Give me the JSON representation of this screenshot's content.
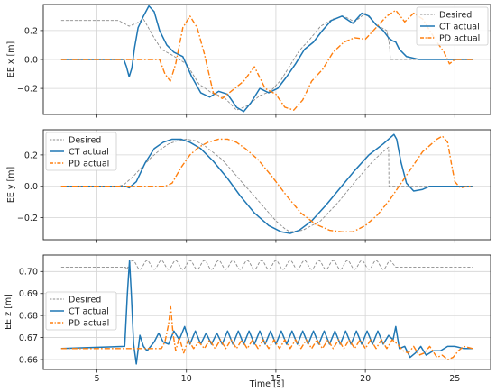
{
  "figure": {
    "xlabel": "Time [s]"
  },
  "colors": {
    "desired": "#8c8c8c",
    "ct": "#1f77b4",
    "pd": "#ff7f0e"
  },
  "chart_data": [
    {
      "type": "line",
      "ylabel": "EE x [m]",
      "xlim": [
        2,
        27
      ],
      "ylim": [
        -0.38,
        0.38
      ],
      "xticks": [
        5,
        10,
        15,
        20,
        25
      ],
      "yticks": [
        -0.2,
        0.0,
        0.2
      ],
      "ytick_labels": [
        "−0.2",
        "0.0",
        "0.2"
      ],
      "grid": true,
      "legend_position": "top-right",
      "series": [
        {
          "name": "Desired",
          "style": "dashed",
          "color": "#8c8c8c",
          "x": [
            3,
            6.2,
            6.5,
            6.8,
            7.2,
            7.6,
            8.1,
            8.6,
            9.2,
            10,
            10.7,
            11.4,
            12.1,
            12.8,
            13.4,
            14.1,
            14.7,
            15.3,
            15.8,
            16.3,
            16.9,
            17.5,
            18.2,
            18.8,
            19.4,
            20,
            20.6,
            21.2,
            21.35,
            21.4,
            21.6,
            22,
            26
          ],
          "y": [
            0.27,
            0.27,
            0.25,
            0.23,
            0.25,
            0.28,
            0.17,
            0.07,
            0.03,
            -0.03,
            -0.17,
            -0.23,
            -0.26,
            -0.35,
            -0.32,
            -0.25,
            -0.22,
            -0.14,
            -0.04,
            0.06,
            0.14,
            0.23,
            0.28,
            0.3,
            0.26,
            0.32,
            0.24,
            0.2,
            0.1,
            0,
            0,
            0,
            0
          ]
        },
        {
          "name": "CT actual",
          "style": "solid",
          "color": "#1f77b4",
          "x": [
            3,
            6.5,
            6.65,
            6.8,
            6.95,
            7.1,
            7.3,
            7.6,
            7.9,
            8.2,
            8.5,
            8.9,
            9.3,
            9.8,
            10.3,
            10.8,
            11.3,
            11.8,
            12.3,
            12.8,
            13.2,
            13.6,
            14.1,
            14.6,
            15.1,
            15.6,
            16.1,
            16.6,
            17.1,
            17.6,
            18.1,
            18.7,
            19.3,
            19.8,
            20.2,
            20.6,
            21,
            21.3,
            21.5,
            21.7,
            21.9,
            22.3,
            23,
            24,
            26
          ],
          "y": [
            0,
            0,
            -0.05,
            -0.12,
            -0.06,
            0.08,
            0.22,
            0.3,
            0.37,
            0.33,
            0.2,
            0.1,
            0.05,
            0.02,
            -0.12,
            -0.23,
            -0.26,
            -0.22,
            -0.24,
            -0.33,
            -0.36,
            -0.3,
            -0.2,
            -0.23,
            -0.2,
            -0.12,
            -0.03,
            0.07,
            0.12,
            0.2,
            0.27,
            0.3,
            0.25,
            0.32,
            0.3,
            0.24,
            0.2,
            0.15,
            0.13,
            0.12,
            0.07,
            0.02,
            0,
            0,
            0
          ]
        },
        {
          "name": "PD actual",
          "style": "dashdot",
          "color": "#ff7f0e",
          "x": [
            3,
            8.5,
            8.8,
            9.1,
            9.4,
            9.8,
            10.2,
            10.6,
            11,
            11.5,
            12,
            12.6,
            13.2,
            13.8,
            14.4,
            15,
            15.5,
            16,
            16.5,
            17,
            17.6,
            18.2,
            18.8,
            19.4,
            20,
            20.6,
            21.2,
            21.7,
            22.2,
            22.7,
            23.2,
            23.6,
            24,
            24.4,
            24.7,
            25,
            26
          ],
          "y": [
            0,
            0,
            -0.1,
            -0.15,
            -0.03,
            0.22,
            0.3,
            0.22,
            0.04,
            -0.23,
            -0.27,
            -0.21,
            -0.15,
            -0.05,
            -0.2,
            -0.24,
            -0.33,
            -0.35,
            -0.28,
            -0.15,
            -0.07,
            0.05,
            0.12,
            0.15,
            0.14,
            0.22,
            0.3,
            0.34,
            0.26,
            0.32,
            0.28,
            0.2,
            0.12,
            0.05,
            -0.03,
            0,
            0
          ]
        }
      ]
    },
    {
      "type": "line",
      "ylabel": "EE y [m]",
      "xlim": [
        2,
        27
      ],
      "ylim": [
        -0.34,
        0.36
      ],
      "xticks": [
        5,
        10,
        15,
        20,
        25
      ],
      "yticks": [
        -0.2,
        0.0,
        0.2
      ],
      "ytick_labels": [
        "−0.2",
        "0.0",
        "0.2"
      ],
      "grid": true,
      "legend_position": "top-left",
      "series": [
        {
          "name": "Desired",
          "style": "dashed",
          "color": "#8c8c8c",
          "x": [
            3,
            6.2,
            6.5,
            7,
            7.5,
            8,
            8.5,
            9,
            9.5,
            10,
            10.5,
            11,
            12,
            13,
            14,
            15,
            15.5,
            15.8,
            16.5,
            17.5,
            18.5,
            19.5,
            20.5,
            21.3,
            21.32,
            21.5,
            26
          ],
          "y": [
            0,
            0,
            0.01,
            0.06,
            0.12,
            0.18,
            0.23,
            0.27,
            0.29,
            0.3,
            0.29,
            0.26,
            0.17,
            0.04,
            -0.09,
            -0.22,
            -0.27,
            -0.29,
            -0.28,
            -0.22,
            -0.1,
            0.04,
            0.17,
            0.25,
            0,
            0,
            0
          ]
        },
        {
          "name": "CT actual",
          "style": "solid",
          "color": "#1f77b4",
          "x": [
            3,
            6.6,
            6.8,
            7.2,
            7.7,
            8.2,
            8.7,
            9.2,
            9.7,
            10.2,
            10.8,
            11.5,
            12.3,
            13,
            13.8,
            14.6,
            15.3,
            15.8,
            16.3,
            17,
            17.8,
            18.6,
            19.4,
            20.2,
            21,
            21.4,
            21.6,
            21.75,
            22,
            22.3,
            22.7,
            23.2,
            23.6,
            24,
            26
          ],
          "y": [
            0,
            0,
            -0.01,
            0.03,
            0.15,
            0.24,
            0.28,
            0.3,
            0.3,
            0.28,
            0.24,
            0.16,
            0.05,
            -0.06,
            -0.17,
            -0.25,
            -0.29,
            -0.3,
            -0.28,
            -0.22,
            -0.12,
            -0.01,
            0.1,
            0.2,
            0.27,
            0.31,
            0.33,
            0.3,
            0.15,
            0.02,
            -0.03,
            -0.02,
            0,
            0,
            0
          ]
        },
        {
          "name": "PD actual",
          "style": "dashdot",
          "color": "#ff7f0e",
          "x": [
            3,
            8.8,
            9.2,
            9.7,
            10.2,
            10.7,
            11.2,
            11.8,
            12.3,
            12.8,
            13.3,
            14,
            14.8,
            15.6,
            16.4,
            17.2,
            18,
            18.7,
            19.3,
            20,
            20.7,
            21.4,
            22,
            22.6,
            23.2,
            23.7,
            24,
            24.3,
            24.6,
            24.8,
            25,
            25.3,
            25.7,
            26
          ],
          "y": [
            0,
            0,
            0.02,
            0.12,
            0.2,
            0.25,
            0.28,
            0.3,
            0.3,
            0.28,
            0.24,
            0.17,
            0.06,
            -0.06,
            -0.17,
            -0.24,
            -0.28,
            -0.29,
            -0.29,
            -0.25,
            -0.18,
            -0.08,
            0.02,
            0.12,
            0.22,
            0.27,
            0.3,
            0.32,
            0.28,
            0.15,
            0.03,
            -0.01,
            0,
            0
          ]
        }
      ]
    },
    {
      "type": "line",
      "ylabel": "EE z [m]",
      "xlim": [
        2,
        27
      ],
      "ylim": [
        0.6555,
        0.7075
      ],
      "xticks": [
        5,
        10,
        15,
        20,
        25
      ],
      "yticks": [
        0.66,
        0.67,
        0.68,
        0.69,
        0.7
      ],
      "ytick_labels": [
        "0.66",
        "0.67",
        "0.68",
        "0.69",
        "0.70"
      ],
      "grid": true,
      "legend_position": "left",
      "series": [
        {
          "name": "Desired",
          "style": "dashed",
          "color": "#8c8c8c",
          "generator": "sine",
          "x_start": 3,
          "osc_start": 6.6,
          "osc_end": 21.4,
          "x_end": 26,
          "baseline": 0.702,
          "center": 0.703,
          "amplitude": 0.002,
          "period": 0.8
        },
        {
          "name": "CT actual",
          "style": "solid",
          "color": "#1f77b4",
          "x": [
            3,
            6.55,
            6.7,
            6.82,
            6.92,
            7.05,
            7.2,
            7.4,
            7.6,
            7.8,
            8.0,
            8.2,
            8.45,
            8.7,
            9.0,
            9.3,
            9.6,
            9.9,
            10.2,
            10.5,
            10.8,
            11.1,
            11.4,
            11.7,
            12.0,
            12.3,
            12.6,
            12.9,
            13.2,
            13.5,
            13.8,
            14.1,
            14.4,
            14.7,
            15.0,
            15.3,
            15.6,
            15.9,
            16.2,
            16.5,
            16.8,
            17.1,
            17.4,
            17.7,
            18.0,
            18.3,
            18.6,
            18.9,
            19.2,
            19.5,
            19.8,
            20.1,
            20.4,
            20.7,
            21.0,
            21.3,
            21.55,
            21.7,
            21.9,
            22.2,
            22.5,
            22.8,
            23.1,
            23.4,
            23.8,
            24.2,
            24.6,
            25.0,
            25.5,
            26
          ],
          "y": [
            0.665,
            0.666,
            0.69,
            0.705,
            0.69,
            0.667,
            0.658,
            0.671,
            0.666,
            0.664,
            0.666,
            0.668,
            0.672,
            0.668,
            0.667,
            0.673,
            0.669,
            0.675,
            0.667,
            0.673,
            0.667,
            0.672,
            0.667,
            0.672,
            0.667,
            0.673,
            0.667,
            0.673,
            0.667,
            0.673,
            0.667,
            0.673,
            0.667,
            0.673,
            0.667,
            0.673,
            0.667,
            0.673,
            0.667,
            0.673,
            0.667,
            0.673,
            0.667,
            0.673,
            0.667,
            0.673,
            0.667,
            0.673,
            0.667,
            0.673,
            0.667,
            0.673,
            0.667,
            0.673,
            0.667,
            0.671,
            0.669,
            0.675,
            0.665,
            0.666,
            0.661,
            0.663,
            0.666,
            0.662,
            0.664,
            0.664,
            0.666,
            0.666,
            0.665,
            0.665
          ]
        },
        {
          "name": "PD actual",
          "style": "dashdot",
          "color": "#ff7f0e",
          "x": [
            3,
            8.6,
            8.8,
            9.0,
            9.12,
            9.25,
            9.4,
            9.6,
            9.85,
            10.1,
            10.4,
            10.7,
            11.0,
            11.3,
            11.6,
            11.9,
            12.2,
            12.5,
            12.8,
            13.1,
            13.4,
            13.7,
            14.0,
            14.3,
            14.6,
            14.9,
            15.2,
            15.5,
            15.8,
            16.1,
            16.4,
            16.7,
            17.0,
            17.3,
            17.6,
            17.9,
            18.2,
            18.5,
            18.8,
            19.1,
            19.4,
            19.7,
            20.0,
            20.3,
            20.6,
            20.9,
            21.2,
            21.5,
            21.8,
            22.1,
            22.4,
            22.7,
            23.0,
            23.3,
            23.6,
            24.0,
            24.3,
            24.6,
            24.9,
            25.2,
            25.5,
            26
          ],
          "y": [
            0.665,
            0.665,
            0.668,
            0.676,
            0.684,
            0.672,
            0.664,
            0.67,
            0.663,
            0.669,
            0.665,
            0.668,
            0.665,
            0.669,
            0.665,
            0.669,
            0.665,
            0.669,
            0.665,
            0.669,
            0.665,
            0.669,
            0.665,
            0.669,
            0.665,
            0.669,
            0.665,
            0.669,
            0.665,
            0.669,
            0.665,
            0.669,
            0.665,
            0.669,
            0.665,
            0.669,
            0.665,
            0.669,
            0.665,
            0.669,
            0.665,
            0.669,
            0.665,
            0.669,
            0.665,
            0.669,
            0.665,
            0.669,
            0.667,
            0.664,
            0.663,
            0.666,
            0.662,
            0.663,
            0.666,
            0.661,
            0.662,
            0.66,
            0.661,
            0.664,
            0.666,
            0.665
          ]
        }
      ]
    }
  ]
}
